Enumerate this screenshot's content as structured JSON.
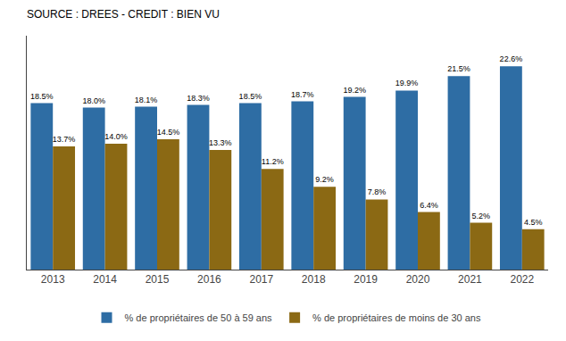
{
  "chart_data": {
    "type": "bar",
    "title": "SOURCE : DREES - CREDIT : BIEN VU",
    "categories": [
      "2013",
      "2014",
      "2015",
      "2016",
      "2017",
      "2018",
      "2019",
      "2020",
      "2021",
      "2022"
    ],
    "series": [
      {
        "name": "% de propriétaires de 50 à 59 ans",
        "color": "#2E6DA4",
        "values": [
          18.5,
          18.0,
          18.1,
          18.3,
          18.5,
          18.7,
          19.2,
          19.9,
          21.5,
          22.6
        ],
        "value_labels": [
          "18.5%",
          "18.0%",
          "18.1%",
          "18.3%",
          "18.5%",
          "18.7%",
          "19.2%",
          "19.9%",
          "21.5%",
          "22.6%"
        ]
      },
      {
        "name": "% de propriétaires de moins de 30 ans",
        "color": "#8B6914",
        "values": [
          13.7,
          14.0,
          14.5,
          13.3,
          11.2,
          9.2,
          7.8,
          6.4,
          5.2,
          4.5
        ],
        "value_labels": [
          "13.7%",
          "14.0%",
          "14.5%",
          "13.3%",
          "11.2%",
          "9.2%",
          "7.8%",
          "6.4%",
          "5.2%",
          "4.5%"
        ]
      }
    ],
    "ylim": [
      0,
      26
    ],
    "tick_labels": "x",
    "grid": false,
    "legend": "bottom",
    "data_labels": true
  }
}
